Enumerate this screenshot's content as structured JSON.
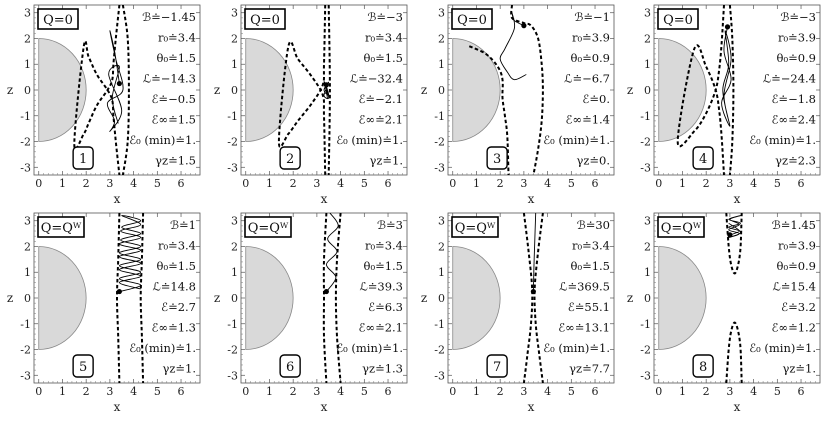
{
  "chart_data": {
    "type": "scatter",
    "xlabel": "x",
    "ylabel": "z",
    "xlim": [
      -0.2,
      6.8
    ],
    "ylim": [
      -3.3,
      3.3
    ],
    "x_ticks": [
      "0",
      "1",
      "2",
      "3",
      "4",
      "5",
      "6"
    ],
    "y_ticks": [
      "-3",
      "-2",
      "-1",
      "0",
      "1",
      "2",
      "3"
    ],
    "black_hole_radius": 2,
    "panels": [
      {
        "number": "1",
        "charge": "Q=0",
        "params": [
          "ℬ≐−1.45",
          "r₀≐3.4",
          "θ₀≐1.5",
          "ℒ≐−14.3",
          "ℰ≐−0.5",
          "ℰ∞≐1.5",
          "ℰ₀ (min)≐1.",
          "γz≐1.5"
        ],
        "start": [
          3.4,
          0.25
        ],
        "boundary": [
          [
            3.4,
            3.3
          ],
          [
            3.25,
            2.0
          ],
          [
            3.15,
            1.0
          ],
          [
            3.1,
            0.4
          ],
          [
            2.9,
            0.0
          ],
          [
            2.45,
            -0.6
          ],
          [
            2.1,
            -1.3
          ],
          [
            1.9,
            -1.7
          ],
          [
            1.5,
            -2.1
          ]
        ],
        "boundary_mirror": true,
        "boundary_outer": [
          [
            3.55,
            3.3
          ],
          [
            3.75,
            2.0
          ],
          [
            3.8,
            0.0
          ],
          [
            3.75,
            -2.0
          ],
          [
            3.55,
            -3.3
          ]
        ],
        "trajectory": [
          [
            3.4,
            0.25
          ],
          [
            3.2,
            1.5
          ],
          [
            3.0,
            2.3
          ],
          [
            3.25,
            1.2
          ],
          [
            3.55,
            0.0
          ],
          [
            2.9,
            -0.5
          ],
          [
            3.2,
            -1.2
          ],
          [
            3.0,
            -1.6
          ],
          [
            3.5,
            -0.8
          ],
          [
            2.95,
            0.6
          ],
          [
            3.4,
            0.9
          ],
          [
            3.1,
            -0.3
          ],
          [
            3.35,
            -1.3
          ]
        ]
      },
      {
        "number": "2",
        "charge": "Q=0",
        "params": [
          "ℬ≐−3",
          "r₀≐3.4",
          "θ₀≐1.5",
          "ℒ≐−32.4",
          "ℰ≐−2.1",
          "ℰ∞≐2.1",
          "ℰ₀ (min)≐1.",
          "γz≐1."
        ],
        "start": [
          3.4,
          0.2
        ],
        "boundary": [
          [
            3.35,
            3.3
          ],
          [
            3.3,
            1.0
          ],
          [
            3.25,
            0.2
          ],
          [
            2.8,
            -0.5
          ],
          [
            2.2,
            -1.2
          ],
          [
            1.8,
            -1.7
          ],
          [
            1.4,
            -2.0
          ]
        ],
        "boundary_mirror": true,
        "boundary_outer": [
          [
            3.5,
            3.3
          ],
          [
            3.55,
            0.0
          ],
          [
            3.5,
            -3.3
          ]
        ],
        "trajectory": [
          [
            3.4,
            0.2
          ],
          [
            3.3,
            0.3
          ],
          [
            3.5,
            -0.3
          ],
          [
            3.3,
            -0.2
          ],
          [
            3.5,
            0.3
          ],
          [
            3.3,
            0.0
          ],
          [
            3.5,
            -0.2
          ],
          [
            3.35,
            0.25
          ],
          [
            3.45,
            -0.35
          ]
        ]
      },
      {
        "number": "3",
        "charge": "Q=0",
        "params": [
          "ℬ≐−1",
          "r₀≐3.9",
          "θ₀≐0.9",
          "ℒ≐−6.7",
          "ℰ≐0.",
          "ℰ∞≐1.4",
          "ℰ₀ (min)≐1.",
          "γz≐0."
        ],
        "start": [
          3.0,
          2.5
        ],
        "boundary": [
          [
            0.7,
            1.7
          ],
          [
            1.4,
            1.4
          ],
          [
            1.9,
            0.9
          ],
          [
            2.1,
            0.4
          ],
          [
            2.1,
            -0.3
          ],
          [
            2.2,
            -1.0
          ],
          [
            2.3,
            -1.8
          ],
          [
            2.35,
            -3.3
          ]
        ],
        "boundary_mirror": false,
        "boundary_outer": [
          [
            2.5,
            3.3
          ],
          [
            2.5,
            2.8
          ],
          [
            3.0,
            2.6
          ],
          [
            3.3,
            2.5
          ],
          [
            3.6,
            2.0
          ],
          [
            3.75,
            1.0
          ],
          [
            3.8,
            0.0
          ],
          [
            3.75,
            -1.2
          ],
          [
            3.6,
            -2.3
          ],
          [
            3.4,
            -3.3
          ]
        ],
        "trajectory": [
          [
            3.0,
            2.5
          ],
          [
            2.6,
            2.7
          ],
          [
            2.5,
            3.0
          ],
          [
            2.6,
            2.4
          ],
          [
            2.2,
            1.6
          ],
          [
            2.0,
            1.2
          ],
          [
            2.3,
            0.7
          ],
          [
            2.6,
            0.4
          ],
          [
            3.1,
            0.6
          ]
        ]
      },
      {
        "number": "4",
        "charge": "Q=0",
        "params": [
          "ℬ≐−3",
          "r₀≐3.9",
          "θ₀≐0.9",
          "ℒ≐−24.4",
          "ℰ≐−1.8",
          "ℰ∞≐2.4",
          "ℰ₀ (min)≐1.",
          "γz≐2.3"
        ],
        "start": [
          2.9,
          2.45
        ],
        "boundary": [
          [
            2.75,
            3.3
          ],
          [
            2.65,
            1.8
          ],
          [
            2.55,
            0.8
          ],
          [
            2.4,
            0.0
          ],
          [
            2.0,
            -0.9
          ],
          [
            1.5,
            -1.6
          ],
          [
            0.8,
            -2.0
          ]
        ],
        "boundary_mirror": true,
        "boundary_outer": [
          [
            3.0,
            3.3
          ],
          [
            3.1,
            2.0
          ],
          [
            3.15,
            0.0
          ],
          [
            3.1,
            -2.0
          ],
          [
            3.0,
            -3.3
          ]
        ],
        "trajectory": [
          [
            2.9,
            2.45
          ],
          [
            2.75,
            1.5
          ],
          [
            3.05,
            0.4
          ],
          [
            2.65,
            -0.5
          ],
          [
            3.0,
            -1.4
          ],
          [
            2.75,
            -0.2
          ],
          [
            3.05,
            1.2
          ],
          [
            2.8,
            2.3
          ],
          [
            2.95,
            1.0
          ],
          [
            2.7,
            0.0
          ],
          [
            2.95,
            -1.2
          ]
        ]
      },
      {
        "number": "5",
        "charge": "Q=Qᵂ",
        "params": [
          "ℬ≐1",
          "r₀≐3.4",
          "θ₀≐1.5",
          "ℒ≐14.8",
          "ℰ≐2.7",
          "ℰ∞≐1.3",
          "ℰ₀ (min)≐1.",
          "γz≐1."
        ],
        "start": [
          3.4,
          0.25
        ],
        "boundary": [
          [
            3.4,
            3.3
          ],
          [
            3.35,
            1.5
          ],
          [
            3.3,
            0.0
          ],
          [
            3.35,
            -1.5
          ],
          [
            3.4,
            -3.3
          ]
        ],
        "boundary_mirror": false,
        "boundary_outer": [
          [
            4.4,
            3.3
          ],
          [
            4.35,
            1.5
          ],
          [
            4.3,
            0.0
          ],
          [
            4.35,
            -1.5
          ],
          [
            4.4,
            -3.3
          ]
        ],
        "trajectory": [
          [
            3.4,
            0.25
          ],
          [
            4.3,
            0.5
          ],
          [
            3.4,
            0.75
          ],
          [
            4.3,
            1.0
          ],
          [
            3.4,
            1.25
          ],
          [
            4.3,
            1.5
          ],
          [
            3.4,
            1.75
          ],
          [
            4.3,
            2.0
          ],
          [
            3.45,
            2.25
          ],
          [
            4.3,
            2.5
          ],
          [
            3.5,
            2.75
          ],
          [
            4.3,
            3.0
          ],
          [
            3.5,
            3.2
          ],
          [
            4.3,
            2.85
          ],
          [
            3.45,
            2.6
          ],
          [
            4.3,
            2.35
          ],
          [
            3.4,
            2.1
          ],
          [
            4.3,
            1.85
          ],
          [
            3.4,
            1.6
          ],
          [
            4.3,
            1.35
          ],
          [
            3.4,
            1.1
          ],
          [
            4.3,
            0.85
          ],
          [
            3.4,
            0.6
          ],
          [
            4.3,
            0.35
          ]
        ]
      },
      {
        "number": "6",
        "charge": "Q=Qᵂ",
        "params": [
          "ℬ≐3",
          "r₀≐3.4",
          "θ₀≐1.5",
          "ℒ≐39.3",
          "ℰ≐6.3",
          "ℰ∞≐2.1",
          "ℰ₀ (min)≐1.",
          "γz≐1.3"
        ],
        "start": [
          3.4,
          0.25
        ],
        "boundary": [
          [
            3.4,
            3.3
          ],
          [
            3.3,
            1.5
          ],
          [
            3.3,
            0.0
          ],
          [
            3.3,
            -1.5
          ],
          [
            3.4,
            -3.3
          ]
        ],
        "boundary_mirror": false,
        "boundary_outer": [
          [
            4.0,
            3.3
          ],
          [
            3.85,
            1.5
          ],
          [
            3.8,
            0.0
          ],
          [
            3.85,
            -1.5
          ],
          [
            4.0,
            -3.3
          ]
        ],
        "trajectory": [
          [
            3.4,
            0.25
          ],
          [
            3.8,
            0.8
          ],
          [
            3.4,
            1.3
          ],
          [
            3.85,
            1.8
          ],
          [
            3.45,
            2.3
          ],
          [
            3.9,
            2.8
          ],
          [
            3.55,
            3.3
          ]
        ]
      },
      {
        "number": "7",
        "charge": "Q=Qᵂ",
        "params": [
          "ℬ≐30",
          "r₀≐3.4",
          "θ₀≐1.5",
          "ℒ≐369.5",
          "ℰ≐55.1",
          "ℰ∞≐13.1",
          "ℰ₀ (min)≐1.",
          "γz≐7.7"
        ],
        "start": [
          3.4,
          0.25
        ],
        "boundary": [
          [
            3.0,
            3.3
          ],
          [
            3.2,
            1.8
          ],
          [
            3.35,
            0.3
          ],
          [
            3.3,
            -1.0
          ],
          [
            3.15,
            -2.2
          ],
          [
            3.0,
            -3.3
          ]
        ],
        "boundary_mirror": false,
        "boundary_outer": [
          [
            3.8,
            3.3
          ],
          [
            3.6,
            1.8
          ],
          [
            3.45,
            0.3
          ],
          [
            3.5,
            -1.0
          ],
          [
            3.65,
            -2.2
          ],
          [
            3.8,
            -3.3
          ]
        ],
        "trajectory": [
          [
            3.4,
            0.25
          ],
          [
            3.42,
            1.0
          ],
          [
            3.45,
            2.0
          ],
          [
            3.5,
            3.3
          ]
        ]
      },
      {
        "number": "8",
        "charge": "Q=Qᵂ",
        "params": [
          "ℬ≐1.45",
          "r₀≐3.9",
          "θ₀≐0.9",
          "ℒ≐15.4",
          "ℰ≐3.2",
          "ℰ∞≐1.2",
          "ℰ₀ (min)≐1.",
          "γz≐1."
        ],
        "start": [
          3.0,
          2.45
        ],
        "boundary": [
          [
            2.85,
            3.3
          ],
          [
            2.95,
            2.0
          ],
          [
            3.05,
            1.3
          ],
          [
            3.2,
            0.95
          ],
          [
            3.35,
            1.3
          ],
          [
            3.45,
            2.0
          ],
          [
            3.5,
            3.3
          ]
        ],
        "boundary_mirror": false,
        "boundary_outer": [
          [
            2.85,
            -3.3
          ],
          [
            2.95,
            -2.0
          ],
          [
            3.05,
            -1.3
          ],
          [
            3.2,
            -0.95
          ],
          [
            3.35,
            -1.3
          ],
          [
            3.45,
            -2.0
          ],
          [
            3.5,
            -3.3
          ]
        ],
        "trajectory": [
          [
            3.0,
            2.45
          ],
          [
            3.4,
            2.6
          ],
          [
            2.95,
            2.75
          ],
          [
            3.45,
            2.9
          ],
          [
            2.95,
            3.05
          ],
          [
            3.45,
            3.2
          ],
          [
            3.0,
            3.05
          ],
          [
            3.4,
            2.85
          ],
          [
            2.95,
            2.65
          ],
          [
            3.4,
            2.5
          ],
          [
            2.95,
            2.35
          ],
          [
            3.45,
            2.55
          ],
          [
            2.95,
            2.9
          ]
        ]
      }
    ]
  }
}
